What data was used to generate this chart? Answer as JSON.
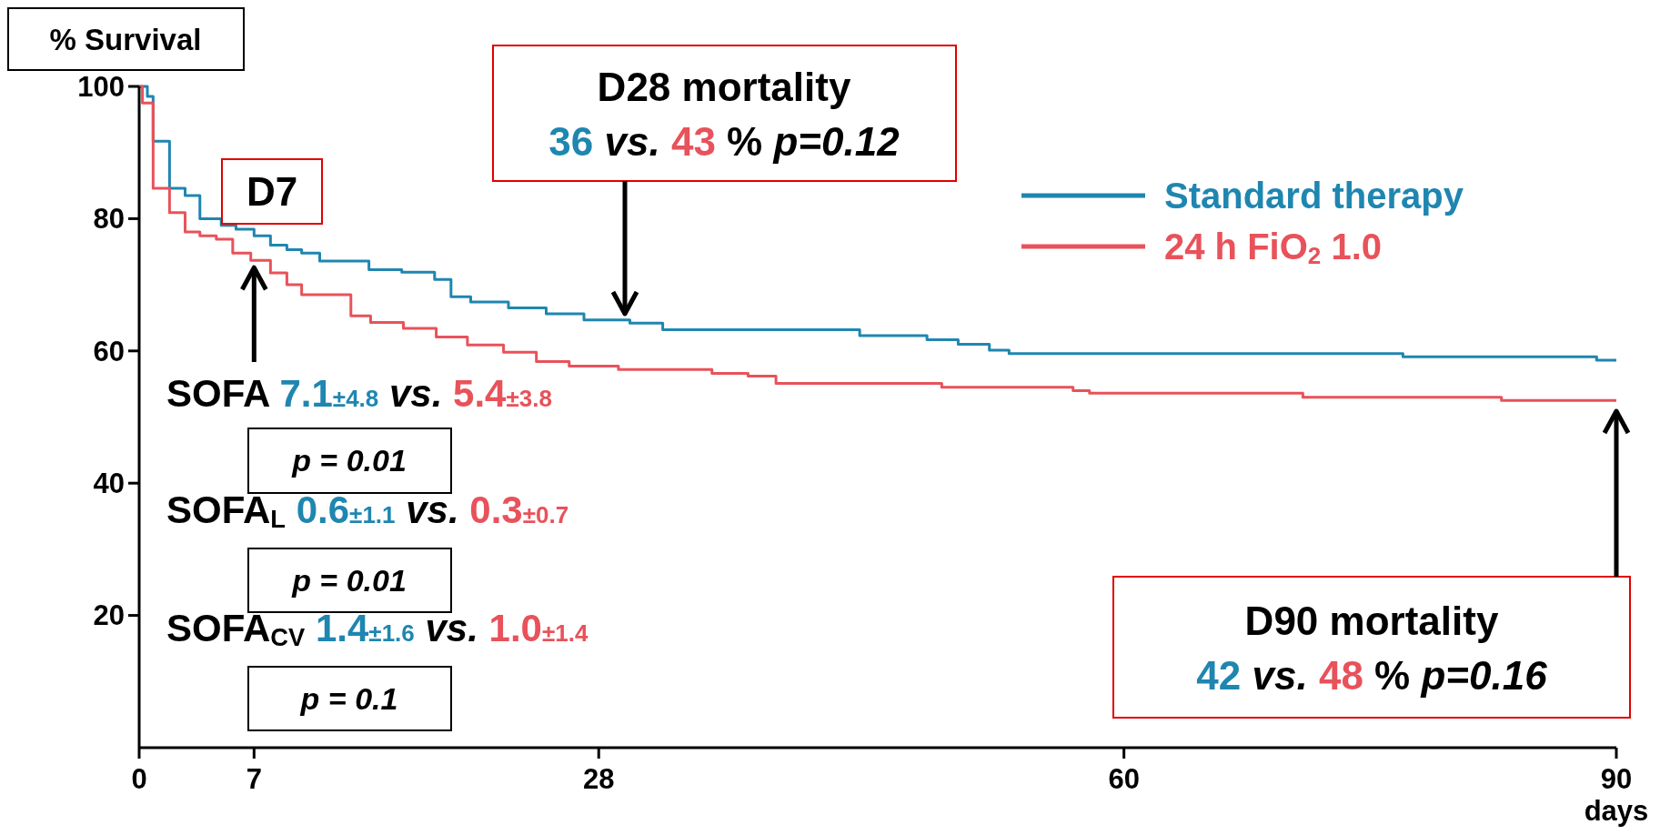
{
  "chart_data": {
    "type": "step",
    "ylabel": "% Survival",
    "xlabel": "days",
    "xlim": [
      0,
      90
    ],
    "ylim": [
      0,
      100
    ],
    "xticks": [
      0,
      7,
      28,
      60,
      90
    ],
    "yticks": [
      20,
      40,
      60,
      80,
      100
    ],
    "legend": "top right",
    "series": [
      {
        "name": "Standard therapy",
        "color": "#1f86b0",
        "x": [
          0,
          0.5,
          0.85,
          1.85,
          2.8,
          3.7,
          5.0,
          5.9,
          7.0,
          8.0,
          9.0,
          9.9,
          11.0,
          14.0,
          16.0,
          18.0,
          19.0,
          20.2,
          22.5,
          24.8,
          27.1,
          29.9,
          31.9,
          43.9,
          48,
          49.9,
          51.8,
          53,
          77,
          88.8,
          90
        ],
        "values": [
          100,
          98.5,
          91.7,
          84.6,
          83.5,
          80,
          79,
          78.4,
          77.4,
          76,
          75.3,
          74.8,
          73.6,
          72.3,
          71.9,
          70.8,
          68.2,
          67.4,
          66.5,
          65.6,
          64.7,
          64.2,
          63.2,
          62.3,
          61.7,
          61,
          60.1,
          59.6,
          59.1,
          58.6,
          58.6
        ]
      },
      {
        "name": "24 h FiO$_{2}$ 1.0",
        "color": "#e8525a",
        "x": [
          0,
          0.2,
          0.85,
          1.85,
          2.8,
          3.7,
          4.7,
          5.7,
          6.8,
          8.0,
          9.0,
          9.9,
          12.9,
          14.1,
          16.1,
          18.1,
          20.0,
          22.2,
          24.2,
          26.2,
          29.2,
          34.9,
          37.1,
          38.8,
          48.9,
          56.9,
          57.9,
          70.9,
          83,
          90
        ],
        "values": [
          100,
          97.5,
          84.6,
          80.9,
          78,
          77.4,
          76.9,
          74.8,
          73.7,
          71.8,
          70,
          68.5,
          65.3,
          64.3,
          63.4,
          62.1,
          60.9,
          59.8,
          58.4,
          57.7,
          57.2,
          56.6,
          56.2,
          55.1,
          54.5,
          54,
          53.6,
          53,
          52.5,
          52.5
        ]
      }
    ],
    "annotations": [
      {
        "text": "D7",
        "x": 7,
        "y": 73.7
      },
      "D28 mortality",
      "36 vs. 43 % p=0.12",
      "D90 mortality",
      "42 vs. 48 % p=0.16",
      "SOFA 7.1±4.8 vs. 5.4±3.8",
      "p = 0.01",
      "SOFA$_{L}$ 0.6±1.1 vs. 0.3±0.7",
      "p = 0.01",
      "SOFA$_{CV}$ 1.4±1.6 vs. 1.0±1.4",
      "p = 0.1"
    ]
  }
}
